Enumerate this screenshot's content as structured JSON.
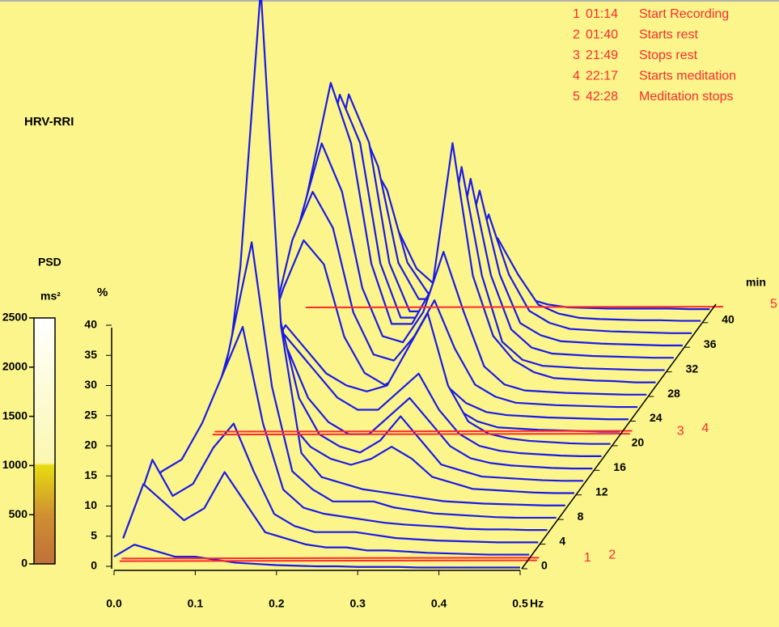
{
  "chart_data": {
    "type": "waterfall3d",
    "title": "HRV-RRI",
    "xlabel": "Hz",
    "ylabel": "%",
    "zlabel": "min",
    "xlim": [
      0,
      0.5
    ],
    "xticks": [
      {
        "value": 0,
        "label": "0.0"
      },
      0.1,
      0.2,
      0.3,
      0.4,
      0.5
    ],
    "ylim": [
      0,
      40
    ],
    "yticks": [
      0,
      5,
      10,
      15,
      20,
      25,
      30,
      35,
      40
    ],
    "zlim": [
      0,
      43
    ],
    "zticks": [
      0,
      4,
      8,
      12,
      16,
      20,
      24,
      28,
      32,
      36,
      40
    ],
    "color": "#1a1ae6",
    "event_color": "#ff2a2a",
    "colorbar": {
      "title": "PSD",
      "unit": "ms²",
      "lim": [
        0,
        2500
      ],
      "ticks": [
        0,
        500,
        1000,
        1500,
        2000,
        2500
      ]
    },
    "events": [
      {
        "number": 1,
        "time": "01:14",
        "label": "Start Recording"
      },
      {
        "number": 2,
        "time": "01:40",
        "label": "Starts rest"
      },
      {
        "number": 3,
        "time": "21:49",
        "label": "Stops rest"
      },
      {
        "number": 4,
        "time": "22:17",
        "label": "Starts meditation"
      },
      {
        "number": 5,
        "time": "42:28",
        "label": "Meditation stops"
      }
    ],
    "x": [
      0,
      0.025,
      0.05,
      0.075,
      0.1,
      0.125,
      0.15,
      0.175,
      0.2,
      0.225,
      0.25,
      0.275,
      0.3,
      0.325,
      0.35,
      0.375,
      0.4,
      0.425,
      0.45,
      0.475,
      0.5
    ],
    "z": [
      0,
      2,
      4,
      6,
      8,
      10,
      12,
      14,
      16,
      18,
      20,
      22,
      24,
      26,
      28,
      30,
      32,
      34,
      36,
      38,
      40,
      42
    ],
    "values": [
      [
        2,
        4,
        3,
        2,
        2,
        1.5,
        1,
        0.8,
        0.6,
        0.5,
        0.4,
        0.4,
        0.3,
        0.3,
        0.3,
        0.2,
        0.2,
        0.2,
        0.2,
        0.2,
        0.2
      ],
      [
        3,
        12,
        9,
        6,
        8,
        14,
        9,
        4,
        3,
        2,
        1.5,
        1.5,
        1,
        1,
        0.8,
        0.6,
        0.5,
        0.4,
        0.3,
        0.3,
        0.3
      ],
      [
        4,
        14,
        8,
        10,
        16,
        20,
        12,
        5,
        3,
        2,
        2,
        2,
        1.5,
        1,
        0.8,
        0.6,
        0.5,
        0.4,
        0.3,
        0.3,
        0.3
      ],
      [
        5,
        10,
        12,
        18,
        26,
        34,
        18,
        7,
        4,
        3,
        2.5,
        2,
        1.5,
        1.2,
        1,
        0.8,
        0.5,
        0.4,
        0.4,
        0.3,
        0.3
      ],
      [
        4,
        8,
        10,
        14,
        30,
        46,
        22,
        8,
        5,
        3,
        3,
        3,
        2,
        1.5,
        1,
        0.8,
        0.6,
        0.4,
        0.3,
        0.3,
        0.3
      ],
      [
        4,
        6,
        8,
        12,
        40,
        86,
        30,
        9,
        5,
        4,
        3,
        2.5,
        2,
        1.5,
        1,
        0.8,
        0.6,
        0.5,
        0.4,
        0.3,
        0.3
      ],
      [
        3,
        7,
        12,
        24,
        30,
        22,
        12,
        8,
        6,
        5,
        6,
        8,
        6,
        3,
        2,
        1,
        0.8,
        0.6,
        0.4,
        0.3,
        0.3
      ],
      [
        3,
        6,
        10,
        20,
        36,
        28,
        14,
        8,
        6,
        5,
        7,
        11,
        7,
        3,
        2,
        1,
        0.8,
        0.6,
        0.4,
        0.3,
        0.3
      ],
      [
        3,
        5,
        8,
        18,
        24,
        20,
        12,
        8,
        6,
        6,
        9,
        12,
        8,
        4,
        2,
        1.2,
        0.8,
        0.6,
        0.4,
        0.3,
        0.3
      ],
      [
        3,
        6,
        10,
        16,
        22,
        18,
        14,
        10,
        8,
        8,
        11,
        14,
        8,
        4,
        2,
        1.2,
        0.8,
        0.6,
        0.4,
        0.3,
        0.3
      ],
      [
        3,
        5,
        8,
        14,
        20,
        16,
        12,
        10,
        9,
        10,
        16,
        22,
        10,
        4,
        2,
        1.2,
        0.8,
        0.6,
        0.4,
        0.3,
        0.3
      ],
      [
        2,
        3,
        4,
        6,
        8,
        8,
        6,
        5,
        4,
        4,
        5,
        6,
        4,
        2,
        1,
        0.8,
        0.6,
        0.5,
        0.4,
        0.3,
        0.3
      ],
      [
        3,
        6,
        12,
        22,
        30,
        26,
        14,
        8,
        6,
        8,
        10,
        6,
        3,
        1.5,
        1,
        0.8,
        0.6,
        0.5,
        0.4,
        0.3,
        0.3
      ],
      [
        3,
        7,
        14,
        28,
        36,
        30,
        16,
        9,
        8,
        12,
        18,
        10,
        4,
        2,
        1,
        0.8,
        0.6,
        0.5,
        0.4,
        0.3,
        0.3
      ],
      [
        4,
        8,
        16,
        30,
        42,
        34,
        18,
        10,
        9,
        14,
        24,
        14,
        5,
        2,
        1,
        0.8,
        0.6,
        0.5,
        0.4,
        0.3,
        0.3
      ],
      [
        4,
        8,
        18,
        34,
        50,
        40,
        20,
        10,
        10,
        16,
        40,
        18,
        8,
        4,
        2,
        1,
        0.8,
        0.6,
        0.5,
        0.3,
        0.3
      ],
      [
        3,
        7,
        16,
        30,
        46,
        38,
        18,
        9,
        9,
        14,
        34,
        16,
        5,
        2,
        1,
        0.8,
        0.6,
        0.5,
        0.4,
        0.3,
        0.3
      ],
      [
        3,
        6,
        14,
        28,
        44,
        36,
        16,
        8,
        8,
        12,
        30,
        14,
        5,
        2,
        1,
        0.8,
        0.6,
        0.5,
        0.4,
        0.3,
        0.3
      ],
      [
        3,
        6,
        12,
        24,
        38,
        30,
        14,
        8,
        8,
        12,
        26,
        12,
        4,
        2,
        1,
        0.8,
        0.6,
        0.5,
        0.4,
        0.3,
        0.3
      ],
      [
        3,
        5,
        10,
        20,
        30,
        24,
        12,
        7,
        7,
        10,
        20,
        10,
        4,
        2,
        1,
        0.8,
        0.6,
        0.5,
        0.4,
        0.3,
        0.3
      ],
      [
        2,
        4,
        8,
        14,
        20,
        16,
        9,
        6,
        5,
        8,
        14,
        8,
        3,
        1.5,
        0.8,
        0.6,
        0.5,
        0.4,
        0.4,
        0.3,
        0.3
      ],
      [
        1,
        2,
        3,
        4,
        5,
        4,
        3,
        2,
        2,
        3,
        4,
        2,
        1,
        0.5,
        0.4,
        0.3,
        0.3,
        0.3,
        0.3,
        0.2,
        0.2
      ]
    ]
  }
}
